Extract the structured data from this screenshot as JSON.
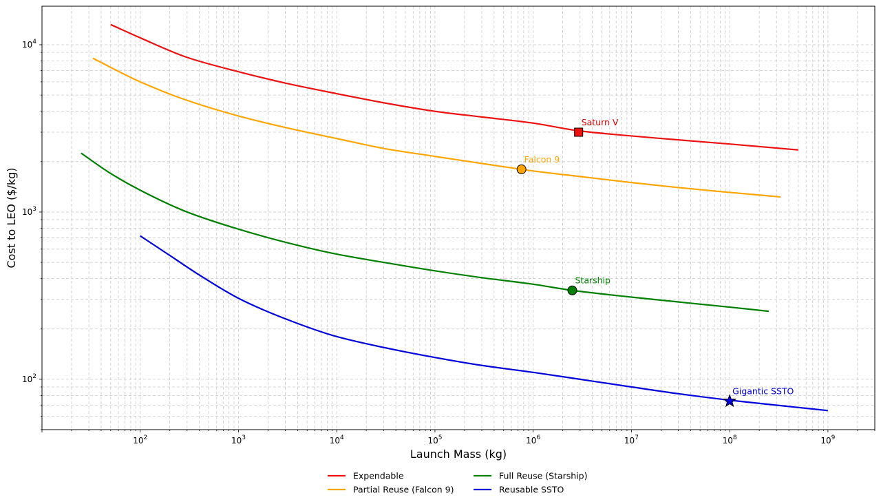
{
  "chart_data": {
    "type": "line",
    "title": "",
    "xlabel": "Launch Mass (kg)",
    "ylabel": "Cost to LEO ($/kg)",
    "xscale": "log",
    "yscale": "log",
    "xlim": [
      10,
      3000000000
    ],
    "ylim": [
      50,
      17000
    ],
    "grid": true,
    "legend_position": "bottom-center",
    "x_ticks": [
      {
        "value": 100,
        "base": "10",
        "exp": "2"
      },
      {
        "value": 1000,
        "base": "10",
        "exp": "3"
      },
      {
        "value": 10000,
        "base": "10",
        "exp": "4"
      },
      {
        "value": 100000,
        "base": "10",
        "exp": "5"
      },
      {
        "value": 1000000,
        "base": "10",
        "exp": "6"
      },
      {
        "value": 10000000,
        "base": "10",
        "exp": "7"
      },
      {
        "value": 100000000,
        "base": "10",
        "exp": "8"
      },
      {
        "value": 1000000000,
        "base": "10",
        "exp": "9"
      }
    ],
    "y_ticks": [
      {
        "value": 100,
        "base": "10",
        "exp": "2"
      },
      {
        "value": 1000,
        "base": "10",
        "exp": "3"
      },
      {
        "value": 10000,
        "base": "10",
        "exp": "4"
      }
    ],
    "series": [
      {
        "name": "Expendable",
        "color": "#ee1111",
        "x": [
          50,
          100,
          300,
          1000,
          3000,
          10000,
          30000,
          100000,
          300000,
          1000000,
          3000000,
          10000000,
          30000000,
          100000000,
          500000000
        ],
        "y": [
          13200,
          11000,
          8400,
          6900,
          5900,
          5100,
          4500,
          4000,
          3700,
          3400,
          3050,
          2850,
          2700,
          2550,
          2350
        ]
      },
      {
        "name": "Partial Reuse (Falcon 9)",
        "color": "#ffa500",
        "x": [
          33,
          100,
          300,
          1000,
          3000,
          10000,
          30000,
          100000,
          300000,
          760000,
          1000000,
          3000000,
          10000000,
          30000000,
          100000000,
          330000000
        ],
        "y": [
          8300,
          6000,
          4650,
          3750,
          3200,
          2750,
          2400,
          2150,
          1950,
          1800,
          1760,
          1630,
          1500,
          1400,
          1310,
          1230
        ]
      },
      {
        "name": "Full Reuse (Starship)",
        "color": "#008000",
        "x": [
          25,
          50,
          100,
          300,
          1000,
          3000,
          10000,
          30000,
          100000,
          300000,
          1000000,
          2500000,
          10000000,
          30000000,
          100000000,
          250000000
        ],
        "y": [
          2250,
          1700,
          1350,
          1000,
          790,
          660,
          560,
          500,
          445,
          405,
          370,
          340,
          310,
          290,
          270,
          255
        ]
      },
      {
        "name": "Reusable SSTO",
        "color": "#0000dd",
        "x": [
          100,
          200,
          400,
          1000,
          3000,
          10000,
          30000,
          100000,
          300000,
          1000000,
          3000000,
          10000000,
          30000000,
          100000000,
          300000000,
          1000000000
        ],
        "y": [
          720,
          550,
          420,
          305,
          230,
          180,
          155,
          135,
          121,
          110,
          100,
          90,
          82,
          75,
          70,
          65
        ]
      }
    ],
    "markers": [
      {
        "label": "Saturn V",
        "x": 2900000,
        "y": 3000,
        "shape": "square",
        "fill": "#ee1111",
        "text_color": "#dd0000"
      },
      {
        "label": "Falcon 9",
        "x": 760000,
        "y": 1800,
        "shape": "circle",
        "fill": "#ffa500",
        "text_color": "#ffa500"
      },
      {
        "label": "Starship",
        "x": 2500000,
        "y": 340,
        "shape": "circle",
        "fill": "#008000",
        "text_color": "#008000"
      },
      {
        "label": "Gigantic SSTO",
        "x": 100000000,
        "y": 74,
        "shape": "star",
        "fill": "#0000dd",
        "text_color": "#0000dd"
      }
    ]
  }
}
